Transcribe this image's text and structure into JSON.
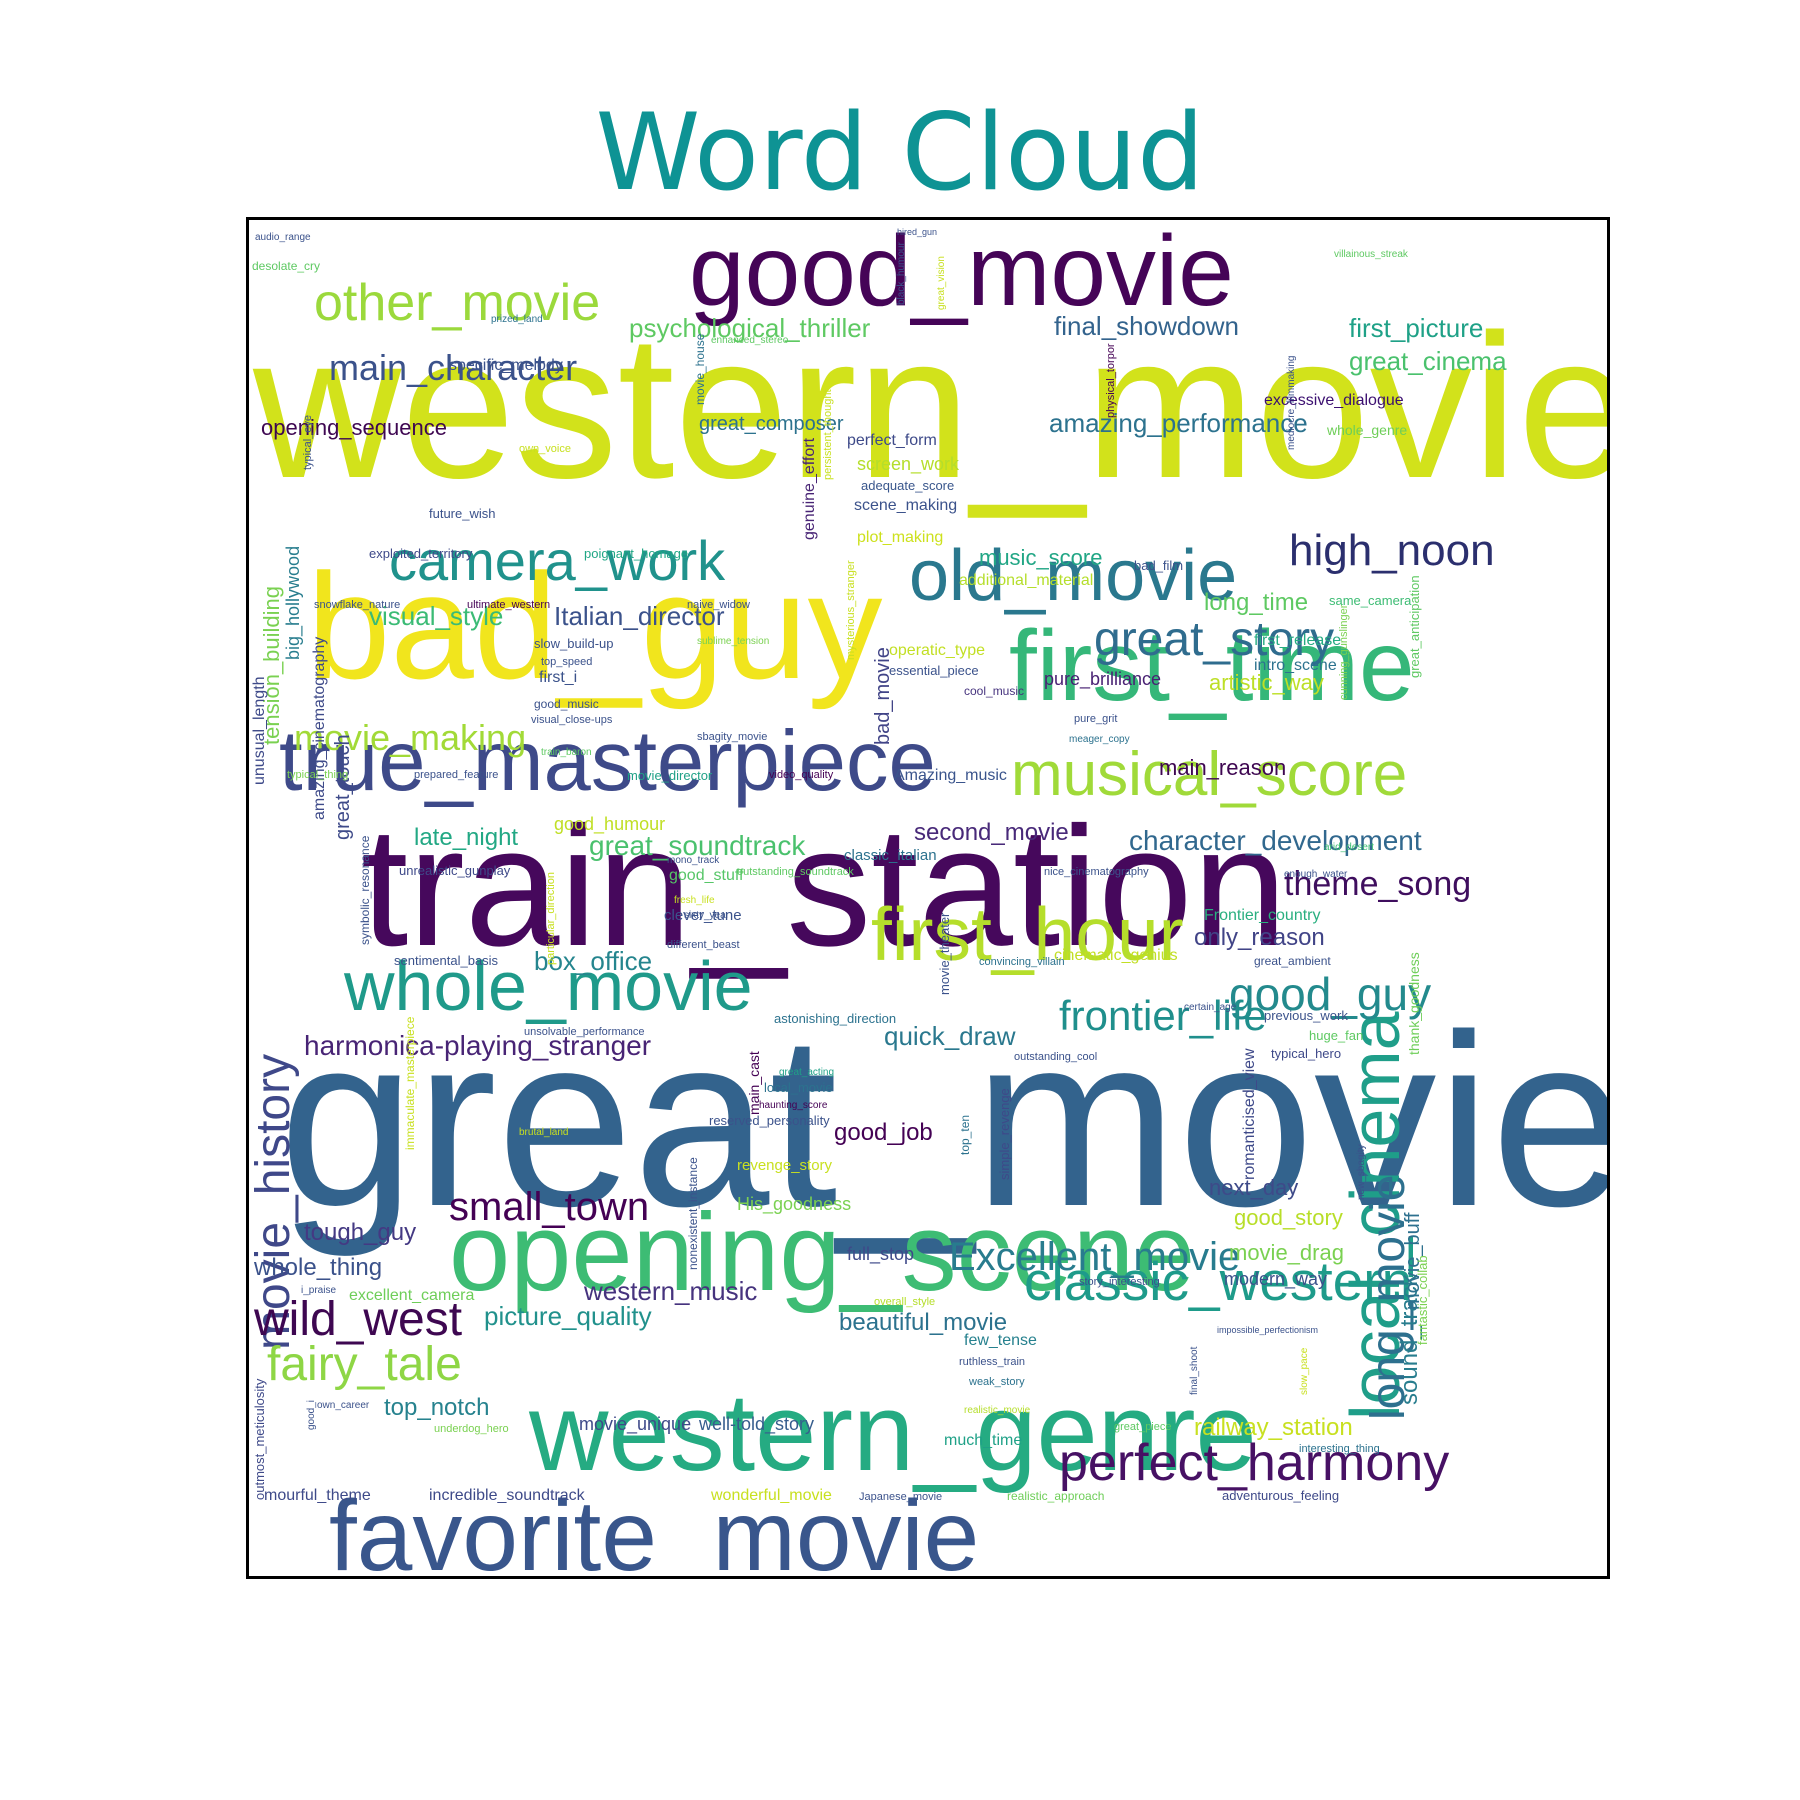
{
  "theme": {
    "title_color": "#0e9394"
  },
  "chart_data": {
    "type": "wordcloud",
    "title": "Word Cloud",
    "words": [
      {
        "text": "great_movie",
        "color": "#33638d"
      },
      {
        "text": "western_movie",
        "color": "#d2e21b"
      },
      {
        "text": "train_station",
        "color": "#46085c"
      },
      {
        "text": "bad_guy",
        "color": "#f1e51d"
      },
      {
        "text": "good_movie",
        "color": "#450457"
      },
      {
        "text": "opening_scene",
        "color": "#3dbc74"
      },
      {
        "text": "western_genre",
        "color": "#25ab82"
      },
      {
        "text": "favorite_movie",
        "color": "#39568c"
      },
      {
        "text": "first_time",
        "color": "#35b779"
      },
      {
        "text": "true_masterpiece",
        "color": "#3e4a89"
      },
      {
        "text": "local_cinema",
        "color": "#1f9e89"
      },
      {
        "text": "first_hour",
        "color": "#b5de2b"
      },
      {
        "text": "whole_movie",
        "color": "#1f9a8a"
      },
      {
        "text": "old_movie",
        "color": "#2a788e"
      },
      {
        "text": "musical_score",
        "color": "#a0da39"
      },
      {
        "text": "camera_work",
        "color": "#20928c"
      },
      {
        "text": "classic_western",
        "color": "#1e9b8a"
      },
      {
        "text": "perfect_harmony",
        "color": "#471164"
      },
      {
        "text": "movie_history",
        "color": "#3f4889"
      },
      {
        "text": "other_movie",
        "color": "#9bd93c"
      },
      {
        "text": "long_movie",
        "color": "#2d708e"
      },
      {
        "text": "great_story",
        "color": "#2f6c8e"
      },
      {
        "text": "Excellent_movie",
        "color": "#287c8e"
      },
      {
        "text": "fairy_tale",
        "color": "#8ed645"
      },
      {
        "text": "wild_west",
        "color": "#3e0751"
      },
      {
        "text": "good_guy",
        "color": "#238a8d"
      },
      {
        "text": "high_noon",
        "color": "#2b2f6e"
      },
      {
        "text": "frontier_life",
        "color": "#1f8f8c"
      },
      {
        "text": "small_town",
        "color": "#440154"
      },
      {
        "text": "main_character",
        "color": "#3b528b"
      },
      {
        "text": "movie_making",
        "color": "#a2da37"
      },
      {
        "text": "theme_song",
        "color": "#3f0e5e"
      },
      {
        "text": "character_development",
        "color": "#31688e"
      },
      {
        "text": "harmonica-playing_stranger",
        "color": "#482475"
      },
      {
        "text": "great_soundtrack",
        "color": "#4ac16d"
      },
      {
        "text": "psychological_thriller",
        "color": "#5ec962"
      },
      {
        "text": "final_showdown",
        "color": "#33638d"
      },
      {
        "text": "first_picture",
        "color": "#1fa187"
      },
      {
        "text": "great_cinema",
        "color": "#4ac16d"
      },
      {
        "text": "amazing_performance",
        "color": "#2c728e"
      },
      {
        "text": "visual_style",
        "color": "#3bbb75"
      },
      {
        "text": "Italian_director",
        "color": "#3b528b"
      },
      {
        "text": "second_movie",
        "color": "#482979"
      },
      {
        "text": "late_night",
        "color": "#22a884"
      },
      {
        "text": "box_office",
        "color": "#25858e"
      },
      {
        "text": "quick_draw",
        "color": "#2a788e"
      },
      {
        "text": "good_job",
        "color": "#440154"
      },
      {
        "text": "tough_guy",
        "color": "#443983"
      },
      {
        "text": "whole_thing",
        "color": "#3b528b"
      },
      {
        "text": "western_music",
        "color": "#46337e"
      },
      {
        "text": "picture_quality",
        "color": "#21918c"
      },
      {
        "text": "beautiful_movie",
        "color": "#2c728e"
      },
      {
        "text": "top_notch",
        "color": "#26828e"
      },
      {
        "text": "movie_unique",
        "color": "#3e4989"
      },
      {
        "text": "well-told_story",
        "color": "#365d8d"
      },
      {
        "text": "railway_station",
        "color": "#c8e020"
      },
      {
        "text": "sound_track",
        "color": "#287d8e"
      },
      {
        "text": "movie_buff",
        "color": "#2d708e"
      },
      {
        "text": "music_score",
        "color": "#21a685"
      },
      {
        "text": "long_time",
        "color": "#5ec962"
      },
      {
        "text": "artistic_way",
        "color": "#bddf26"
      },
      {
        "text": "pure_brilliance",
        "color": "#482173"
      },
      {
        "text": "main_reason",
        "color": "#3e0751"
      },
      {
        "text": "only_reason",
        "color": "#414487"
      },
      {
        "text": "next_day",
        "color": "#3e4a89"
      },
      {
        "text": "good_story",
        "color": "#b8de29"
      },
      {
        "text": "movie_drag",
        "color": "#7ad151"
      },
      {
        "text": "modern_way",
        "color": "#3b528b"
      },
      {
        "text": "opening_sequence",
        "color": "#3e0751"
      },
      {
        "text": "specific_melody",
        "color": "#3b528b"
      },
      {
        "text": "excessive_dialogue",
        "color": "#3b0f70"
      },
      {
        "text": "whole_genre",
        "color": "#6ece58"
      },
      {
        "text": "great_composer",
        "color": "#2c728e"
      },
      {
        "text": "perfect_form",
        "color": "#3e4a89"
      },
      {
        "text": "screen_work",
        "color": "#b5de2b"
      },
      {
        "text": "scene_making",
        "color": "#3b528b"
      },
      {
        "text": "plot_making",
        "color": "#cde11d"
      },
      {
        "text": "adequate_score",
        "color": "#39568c"
      },
      {
        "text": "additional_material",
        "color": "#b5de2b"
      },
      {
        "text": "tension_building",
        "color": "#7ad151"
      },
      {
        "text": "big_hollywood",
        "color": "#287d8e"
      },
      {
        "text": "Amazing_music",
        "color": "#3a548c"
      },
      {
        "text": "Frontier_country",
        "color": "#29af7f"
      },
      {
        "text": "cinematic_genius",
        "color": "#c2df23"
      },
      {
        "text": "mourful_theme",
        "color": "#3e4a89"
      },
      {
        "text": "incredible_soundtrack",
        "color": "#3e4a89"
      },
      {
        "text": "wonderful_movie",
        "color": "#c8e020"
      },
      {
        "text": "much_time",
        "color": "#1fa187"
      },
      {
        "text": "few_tense",
        "color": "#26818e"
      },
      {
        "text": "full_stop",
        "color": "#3e4989"
      },
      {
        "text": "His_goodness",
        "color": "#7ad151"
      },
      {
        "text": "excellent_camera",
        "color": "#6ece58"
      },
      {
        "text": "good_humour",
        "color": "#c0df25"
      },
      {
        "text": "good_stuff",
        "color": "#56c667"
      },
      {
        "text": "clever_tune",
        "color": "#3b528b"
      },
      {
        "text": "bad_movie",
        "color": "#414487"
      },
      {
        "text": "genuine_effort",
        "color": "#482475"
      },
      {
        "text": "amazing_cinematography",
        "color": "#3e4a89"
      },
      {
        "text": "great_touch",
        "color": "#3e4a89"
      },
      {
        "text": "unusual_length",
        "color": "#3e4a89"
      },
      {
        "text": "operatic_type",
        "color": "#c2df23"
      },
      {
        "text": "essential_piece",
        "color": "#3b528b"
      },
      {
        "text": "cool_music",
        "color": "#46337e"
      },
      {
        "text": "first_release",
        "color": "#25ab82"
      },
      {
        "text": "intro_scene",
        "color": "#2c728e"
      },
      {
        "text": "same_camera",
        "color": "#3dbc74"
      },
      {
        "text": "bad_film",
        "color": "#3b528b"
      },
      {
        "text": "first_i",
        "color": "#3b528b"
      },
      {
        "text": "good_music",
        "color": "#3b528b"
      },
      {
        "text": "future_wish",
        "color": "#3b528b"
      },
      {
        "text": "exploited_territory",
        "color": "#3e4989"
      },
      {
        "text": "poignant_homage",
        "color": "#21a685"
      },
      {
        "text": "slow_build-up",
        "color": "#3b528b"
      },
      {
        "text": "snowflake_nature",
        "color": "#3b528b"
      },
      {
        "text": "ultimate_western",
        "color": "#440154"
      },
      {
        "text": "naive_widow",
        "color": "#3b528b"
      },
      {
        "text": "sublime_tension",
        "color": "#7ad151"
      },
      {
        "text": "top_speed",
        "color": "#3b528b"
      },
      {
        "text": "visual_close-ups",
        "color": "#3b528b"
      },
      {
        "text": "train_baron",
        "color": "#5ec962"
      },
      {
        "text": "sbagity_movie",
        "color": "#3b528b"
      },
      {
        "text": "movie_director",
        "color": "#1fa187"
      },
      {
        "text": "video_quality",
        "color": "#440154"
      },
      {
        "text": "prepared_feature",
        "color": "#3b528b"
      },
      {
        "text": "typical_thing",
        "color": "#7ad151"
      },
      {
        "text": "mono_track",
        "color": "#3b528b"
      },
      {
        "text": "outstanding_soundtrack",
        "color": "#5ec962"
      },
      {
        "text": "classic_italian",
        "color": "#2c728e"
      },
      {
        "text": "nice_cinematography",
        "color": "#3b528b"
      },
      {
        "text": "enough_water",
        "color": "#3b528b"
      },
      {
        "text": "arid_desert",
        "color": "#3dbc74"
      },
      {
        "text": "unrealistic_gunplay",
        "color": "#3e4989"
      },
      {
        "text": "symbolic_resonance",
        "color": "#3b528b"
      },
      {
        "text": "particular_direction",
        "color": "#c8e020"
      },
      {
        "text": "fresh_life",
        "color": "#c8e020"
      },
      {
        "text": "sixty_year",
        "color": "#3b528b"
      },
      {
        "text": "different_beast",
        "color": "#3b528b"
      },
      {
        "text": "sentimental_basis",
        "color": "#3b528b"
      },
      {
        "text": "convincing_villain",
        "color": "#2c728e"
      },
      {
        "text": "great_ambient",
        "color": "#3b528b"
      },
      {
        "text": "certain_age",
        "color": "#3b528b"
      },
      {
        "text": "previous_work",
        "color": "#3b528b"
      },
      {
        "text": "huge_fan",
        "color": "#5ec962"
      },
      {
        "text": "typical_hero",
        "color": "#3e4989"
      },
      {
        "text": "thank_goodness",
        "color": "#6ece58"
      },
      {
        "text": "unsolvable_performance",
        "color": "#3b528b"
      },
      {
        "text": "astonishing_direction",
        "color": "#2c728e"
      },
      {
        "text": "outstanding_cool",
        "color": "#3b528b"
      },
      {
        "text": "romanticised_view",
        "color": "#3e4989"
      },
      {
        "text": "movie_theater",
        "color": "#3b528b"
      },
      {
        "text": "main_cast",
        "color": "#440154"
      },
      {
        "text": "great_acting",
        "color": "#1fa187"
      },
      {
        "text": "local_movie",
        "color": "#2c728e"
      },
      {
        "text": "haunting_score",
        "color": "#440154"
      },
      {
        "text": "reserved_personality",
        "color": "#3b528b"
      },
      {
        "text": "top_ten",
        "color": "#2c728e"
      },
      {
        "text": "simple_revenge",
        "color": "#3e4989"
      },
      {
        "text": "revenge_story",
        "color": "#c8e020"
      },
      {
        "text": "immaculate_masterpiece",
        "color": "#c8e020"
      },
      {
        "text": "brutal_land",
        "color": "#c8e020"
      },
      {
        "text": "nonexistent_instance",
        "color": "#3b528b"
      },
      {
        "text": "new_sbagity",
        "color": "#3b528b"
      },
      {
        "text": "fantastic_collab",
        "color": "#7ad151"
      },
      {
        "text": "i_praise",
        "color": "#3b528b"
      },
      {
        "text": "story_interesting",
        "color": "#3b528b"
      },
      {
        "text": "overall_style",
        "color": "#b5de2b"
      },
      {
        "text": "impossible_perfectionism",
        "color": "#3b528b"
      },
      {
        "text": "final_shoot",
        "color": "#3b528b"
      },
      {
        "text": "slow_pace",
        "color": "#c8e020"
      },
      {
        "text": "ruthless_train",
        "color": "#3b528b"
      },
      {
        "text": "weak_story",
        "color": "#2c728e"
      },
      {
        "text": "realistic_movie",
        "color": "#b5de2b"
      },
      {
        "text": "great_piece",
        "color": "#5ec962"
      },
      {
        "text": "interesting_thing",
        "color": "#2c728e"
      },
      {
        "text": "own_career",
        "color": "#3b528b"
      },
      {
        "text": "underdog_hero",
        "color": "#7ad151"
      },
      {
        "text": "good_i",
        "color": "#3b528b"
      },
      {
        "text": "outmost_meticulosity",
        "color": "#3e4989"
      },
      {
        "text": "Japanese_movie",
        "color": "#3b528b"
      },
      {
        "text": "realistic_approach",
        "color": "#6ece58"
      },
      {
        "text": "adventurous_feeling",
        "color": "#3e4989"
      },
      {
        "text": "audio_range",
        "color": "#3b528b"
      },
      {
        "text": "desolate_cry",
        "color": "#5ec962"
      },
      {
        "text": "prized_land",
        "color": "#2c728e"
      },
      {
        "text": "hired_gun",
        "color": "#3b528b"
      },
      {
        "text": "black_humour",
        "color": "#3b528b"
      },
      {
        "text": "great_vision",
        "color": "#c8e020"
      },
      {
        "text": "enhanced_stereo",
        "color": "#5ec962"
      },
      {
        "text": "movie_house",
        "color": "#2c728e"
      },
      {
        "text": "persistent_thought",
        "color": "#c8e020"
      },
      {
        "text": "physical_torpor",
        "color": "#440154"
      },
      {
        "text": "mediocre_filmmaking",
        "color": "#3b528b"
      },
      {
        "text": "villainous_streak",
        "color": "#5ec962"
      },
      {
        "text": "own_voice",
        "color": "#c8e020"
      },
      {
        "text": "typical_eye",
        "color": "#3b528b"
      },
      {
        "text": "mysterious_stranger",
        "color": "#c8e020"
      },
      {
        "text": "pure_grit",
        "color": "#3b528b"
      },
      {
        "text": "meager_copy",
        "color": "#2c728e"
      },
      {
        "text": "cunning_gunslinger",
        "color": "#7ad151"
      },
      {
        "text": "great_anticipation",
        "color": "#5ec962"
      }
    ]
  }
}
